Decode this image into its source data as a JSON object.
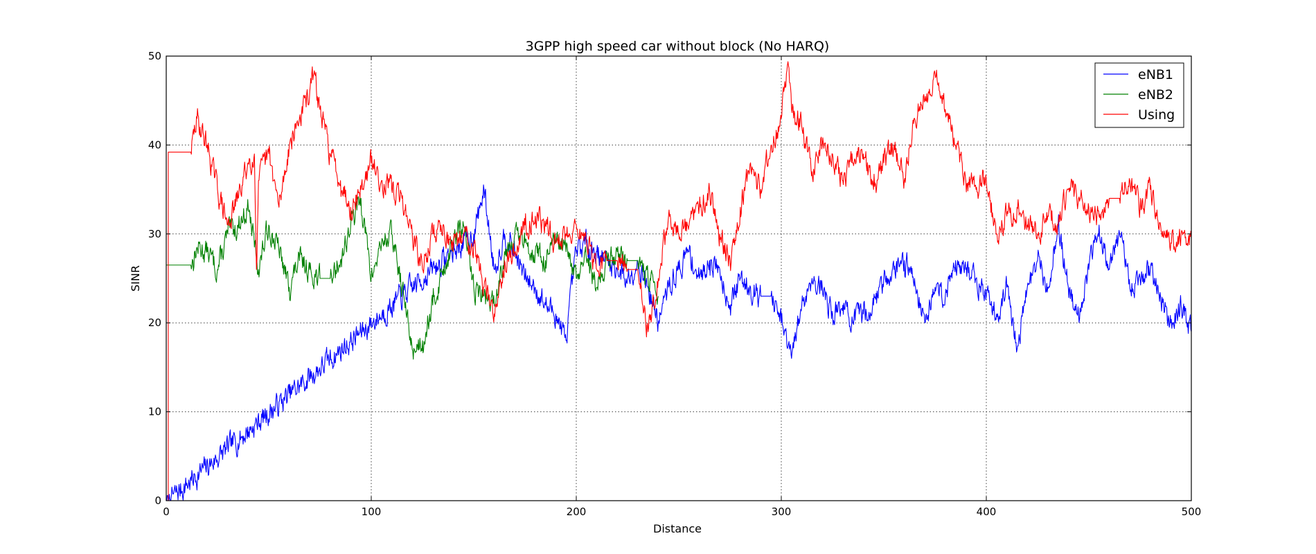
{
  "chart_data": {
    "type": "line",
    "title": "3GPP high speed car without block (No HARQ)",
    "xlabel": "Distance",
    "ylabel": "SINR",
    "xlim": [
      0,
      500
    ],
    "ylim": [
      0,
      50
    ],
    "xticks": [
      "0",
      "100",
      "200",
      "300",
      "400",
      "500"
    ],
    "yticks": [
      "0",
      "10",
      "20",
      "30",
      "40",
      "50"
    ],
    "grid": true,
    "legend_position": "top-right",
    "series": [
      {
        "name": "eNB1",
        "color": "#0000ff",
        "x": [
          0,
          1,
          1,
          150,
          155,
          160,
          165,
          170,
          175,
          180,
          185,
          190,
          195,
          200,
          205,
          210,
          215,
          220,
          225,
          230,
          235,
          240,
          245,
          250,
          255,
          260,
          265,
          270,
          275,
          280,
          285,
          290,
          295,
          300,
          305,
          310,
          315,
          320,
          325,
          330,
          335,
          340,
          345,
          350,
          355,
          360,
          365,
          370,
          375,
          380,
          385,
          390,
          395,
          400,
          405,
          410,
          415,
          420,
          425,
          430,
          435,
          440,
          445,
          450,
          455,
          460,
          465,
          470,
          475,
          480,
          485,
          490,
          495,
          500
        ],
        "y": [
          0,
          0,
          0,
          30,
          35,
          26,
          30,
          28,
          25,
          24,
          22,
          21,
          18,
          28,
          29,
          28,
          27,
          26,
          25,
          27,
          24,
          20,
          24,
          26,
          28,
          25,
          27,
          26,
          22,
          25,
          24,
          23,
          23,
          20,
          16,
          22,
          25,
          24,
          21,
          22,
          20,
          21,
          22,
          25,
          26,
          27,
          25,
          20,
          24,
          23,
          27,
          26,
          25,
          23,
          21,
          24,
          17,
          24,
          27,
          24,
          31,
          24,
          21,
          26,
          31,
          26,
          30,
          24,
          25,
          26,
          23,
          20,
          22,
          19
        ]
      },
      {
        "name": "eNB2",
        "color": "#008000",
        "x": [
          0,
          12,
          13,
          15,
          20,
          25,
          30,
          35,
          40,
          45,
          50,
          55,
          60,
          65,
          70,
          75,
          80,
          85,
          90,
          95,
          100,
          105,
          110,
          115,
          120,
          125,
          130,
          135,
          140,
          145,
          150,
          155,
          160,
          165,
          170,
          175,
          180,
          185,
          190,
          195,
          200,
          205,
          210,
          215,
          220,
          225,
          230,
          235,
          240
        ],
        "y": [
          26.5,
          26.5,
          27,
          28.5,
          28,
          26,
          30,
          31,
          33,
          26,
          31,
          28,
          24,
          27,
          26,
          25,
          25,
          27,
          31,
          34,
          25,
          29,
          30,
          24,
          17,
          18,
          22,
          26,
          29,
          31,
          24,
          23,
          22,
          28,
          30,
          29,
          28,
          27,
          29,
          28,
          25,
          27,
          24,
          27,
          28,
          27,
          27,
          25,
          23
        ]
      },
      {
        "name": "Using",
        "color": "#ff0000",
        "x": [
          1,
          1,
          12,
          15,
          20,
          25,
          30,
          35,
          40,
          43,
          44,
          45,
          50,
          55,
          60,
          65,
          70,
          72,
          75,
          80,
          85,
          90,
          95,
          100,
          105,
          110,
          115,
          120,
          125,
          130,
          135,
          140,
          145,
          150,
          155,
          160,
          165,
          170,
          175,
          180,
          185,
          190,
          195,
          200,
          205,
          210,
          215,
          220,
          225,
          230,
          235,
          240,
          245,
          250,
          255,
          260,
          265,
          270,
          275,
          280,
          285,
          290,
          295,
          300,
          303,
          305,
          310,
          315,
          320,
          325,
          330,
          335,
          340,
          345,
          350,
          355,
          360,
          365,
          370,
          375,
          380,
          385,
          390,
          395,
          400,
          405,
          410,
          415,
          420,
          425,
          430,
          435,
          440,
          445,
          450,
          455,
          460,
          465,
          470,
          475,
          480,
          485,
          490,
          495,
          500
        ],
        "y": [
          0,
          39.2,
          39.2,
          43,
          40,
          35,
          31,
          34,
          38,
          39,
          26,
          36,
          39,
          33,
          40,
          43,
          46,
          48,
          44,
          39,
          36,
          33,
          35,
          38,
          36,
          35,
          34,
          30,
          26,
          30,
          31,
          28,
          30,
          29,
          24,
          21,
          27,
          28,
          31,
          32,
          31,
          29,
          30,
          31,
          29,
          26,
          27,
          27,
          26,
          26,
          19,
          25,
          32,
          30,
          31,
          33,
          35,
          30,
          27,
          33,
          38,
          35,
          40,
          43,
          49,
          44,
          42,
          37,
          40,
          39,
          36,
          38,
          39,
          35,
          38,
          40,
          36,
          43,
          45,
          48,
          44,
          40,
          36,
          35,
          36,
          30,
          32,
          33,
          31,
          30,
          32,
          31,
          35,
          34,
          33,
          32,
          34,
          34,
          36,
          33,
          35,
          31,
          29,
          30,
          29.5
        ]
      }
    ]
  }
}
